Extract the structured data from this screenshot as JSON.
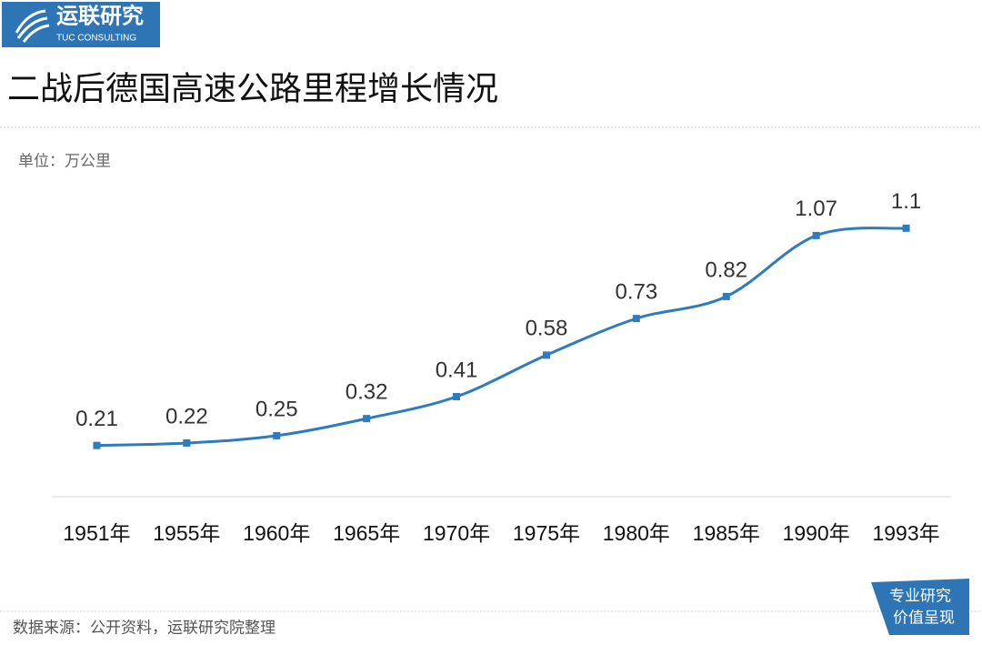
{
  "brand": {
    "name": "运联研究",
    "sub": "TUC CONSULTING"
  },
  "chart_data": {
    "type": "line",
    "title": "二战后德国高速公路里程增长情况",
    "unit": "单位：万公里",
    "categories": [
      "1951年",
      "1955年",
      "1960年",
      "1965年",
      "1970年",
      "1975年",
      "1980年",
      "1985年",
      "1990年",
      "1993年"
    ],
    "values": [
      0.21,
      0.22,
      0.25,
      0.32,
      0.41,
      0.58,
      0.73,
      0.82,
      1.07,
      1.1
    ],
    "color": "#2f7bbf",
    "ylim": [
      0,
      1.2
    ]
  },
  "source": "数据来源：公开资料，运联研究院整理",
  "badge": [
    "专业研究",
    "价值呈现"
  ]
}
